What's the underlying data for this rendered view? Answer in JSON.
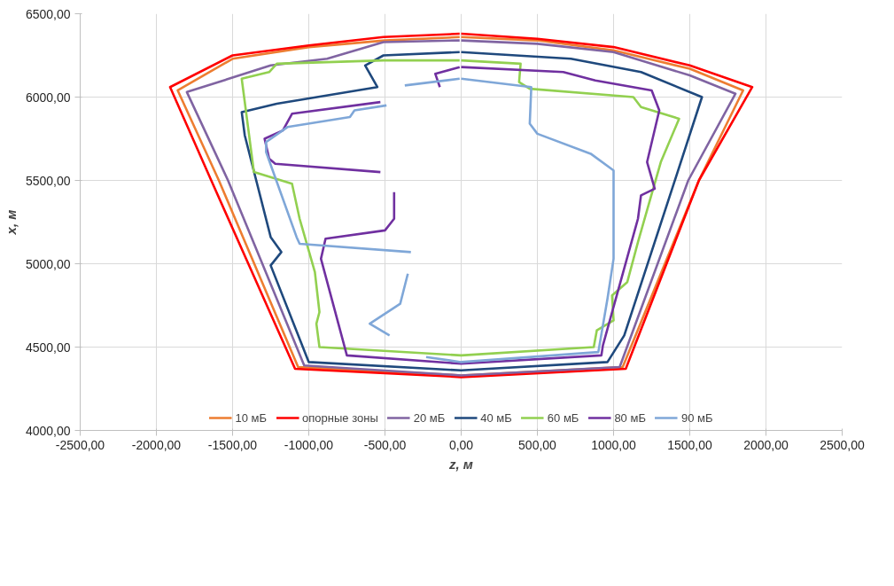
{
  "chart_data": {
    "type": "line",
    "xlabel": "z, м",
    "ylabel": "x, м",
    "xlim": [
      -2500,
      2500
    ],
    "ylim": [
      4000,
      6500
    ],
    "xticks": [
      {
        "value": -2500,
        "label": "-2500,00"
      },
      {
        "value": -2000,
        "label": "-2000,00"
      },
      {
        "value": -1500,
        "label": "-1500,00"
      },
      {
        "value": -1000,
        "label": "-1000,00"
      },
      {
        "value": -500,
        "label": "-500,00"
      },
      {
        "value": 0,
        "label": "0,00"
      },
      {
        "value": 500,
        "label": "500,00"
      },
      {
        "value": 1000,
        "label": "1000,00"
      },
      {
        "value": 1500,
        "label": "1500,00"
      },
      {
        "value": 2000,
        "label": "2000,00"
      },
      {
        "value": 2500,
        "label": "2500,00"
      }
    ],
    "yticks": [
      {
        "value": 4000,
        "label": "4000,00"
      },
      {
        "value": 4500,
        "label": "4500,00"
      },
      {
        "value": 5000,
        "label": "5000,00"
      },
      {
        "value": 5500,
        "label": "5500,00"
      },
      {
        "value": 6000,
        "label": "6000,00"
      },
      {
        "value": 6500,
        "label": "6500,00"
      }
    ],
    "grid": true,
    "legend": "bottom",
    "marker": "none",
    "line_style": "solid",
    "series": [
      {
        "name": "10 мБ",
        "color": "#ed7d31",
        "x": [
          0,
          500,
          1000,
          1500,
          1850,
          1560,
          1060,
          0,
          -1070,
          -1590,
          -1860,
          -1500,
          -1000,
          -500,
          -10
        ],
        "values": [
          6360,
          6340,
          6280,
          6170,
          6040,
          5500,
          4380,
          4330,
          4380,
          5500,
          6040,
          6230,
          6300,
          6340,
          6360
        ]
      },
      {
        "name": "опорные зоны",
        "color": "#ff0000",
        "x": [
          0,
          500,
          1000,
          1500,
          1910,
          1560,
          1080,
          0,
          -1090,
          -1640,
          -1910,
          -1500,
          -1000,
          -510,
          -10
        ],
        "values": [
          6380,
          6350,
          6300,
          6190,
          6060,
          5500,
          4370,
          4320,
          4370,
          5500,
          6060,
          6250,
          6310,
          6360,
          6380
        ]
      },
      {
        "name": "20 мБ",
        "color": "#8064a2",
        "x": [
          0,
          500,
          1000,
          1500,
          1800,
          1490,
          1040,
          0,
          -1030,
          -1530,
          -1800,
          -1250,
          -880,
          -510,
          -10
        ],
        "values": [
          6340,
          6320,
          6270,
          6130,
          6020,
          5500,
          4380,
          4330,
          4390,
          5500,
          6030,
          6190,
          6230,
          6330,
          6340
        ]
      },
      {
        "name": "40 мБ",
        "color": "#1f497d",
        "x": [
          0,
          720,
          1180,
          1580,
          1420,
          1070,
          960,
          0,
          -1000,
          -1250,
          -1180,
          -1250,
          -1420,
          -1440,
          -1210,
          -550,
          -630,
          -510,
          -10
        ],
        "values": [
          6270,
          6230,
          6150,
          6000,
          5550,
          4570,
          4410,
          4360,
          4410,
          4990,
          5070,
          5160,
          5770,
          5910,
          5960,
          6060,
          6190,
          6250,
          6270
        ]
      },
      {
        "name": "60 мБ",
        "color": "#92d050",
        "x": [
          0,
          390,
          380,
          450,
          1130,
          1180,
          1430,
          1310,
          1160,
          1090,
          990,
          1000,
          890,
          870,
          0,
          -930,
          -950,
          -930,
          -960,
          -1060,
          -1110,
          -1360,
          -1430,
          -1440,
          -1260,
          -1210,
          -510,
          -10
        ],
        "values": [
          6220,
          6200,
          6090,
          6050,
          6000,
          5940,
          5870,
          5610,
          5130,
          4890,
          4810,
          4660,
          4600,
          4500,
          4450,
          4500,
          4640,
          4710,
          4950,
          5270,
          5480,
          5550,
          6040,
          6110,
          6150,
          6200,
          6220,
          6220
        ]
      },
      {
        "name": "80 мБ",
        "color": "#7030a0",
        "x": [
          0,
          670,
          880,
          1250,
          1300,
          1220,
          1270,
          1180,
          1160,
          930,
          920,
          0,
          -750,
          -920,
          -890,
          -500,
          -440,
          -440,
          null,
          -530,
          -1220,
          -1260,
          -1290,
          -1170,
          -1110,
          -530,
          null,
          -140,
          -170,
          -10
        ],
        "values": [
          6180,
          6150,
          6100,
          6040,
          5920,
          5610,
          5450,
          5410,
          5270,
          4510,
          4450,
          4400,
          4450,
          5030,
          5150,
          5200,
          5270,
          5430,
          null,
          5550,
          5600,
          5630,
          5750,
          5800,
          5900,
          5970,
          null,
          6060,
          6140,
          6180
        ]
      },
      {
        "name": "90 мБ",
        "color": "#7fa7d8",
        "x": [
          0,
          460,
          450,
          500,
          850,
          1000,
          1000,
          960,
          900,
          0,
          -230,
          null,
          -470,
          -600,
          -400,
          -350,
          null,
          -330,
          -1060,
          -1080,
          -1280,
          -1280,
          -1140,
          -730,
          -700,
          -490,
          null,
          -370,
          -10
        ],
        "values": [
          6110,
          6060,
          5840,
          5780,
          5660,
          5560,
          5030,
          4790,
          4470,
          4410,
          4440,
          null,
          4570,
          4640,
          4760,
          4940,
          null,
          5070,
          5120,
          5160,
          5670,
          5730,
          5820,
          5880,
          5920,
          5950,
          null,
          6070,
          6110
        ]
      }
    ]
  }
}
